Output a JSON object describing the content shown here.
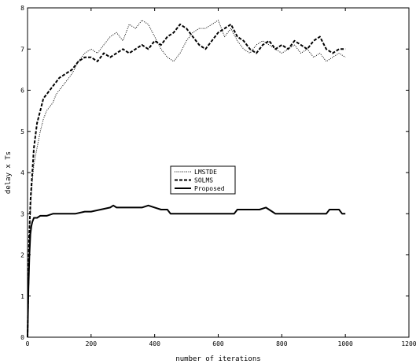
{
  "chart_data": {
    "type": "line",
    "xlabel": "number of iterations",
    "ylabel": "delay x Ts",
    "xlim": [
      0,
      1200
    ],
    "ylim": [
      0,
      8
    ],
    "xticks": [
      0,
      200,
      400,
      600,
      800,
      1000,
      1200
    ],
    "yticks": [
      0,
      1,
      2,
      3,
      4,
      5,
      6,
      7,
      8
    ],
    "grid": false,
    "legend_position": "center",
    "series": [
      {
        "name": "LMSTDE",
        "style": "dotted",
        "x": [
          0,
          5,
          10,
          15,
          20,
          30,
          40,
          50,
          60,
          70,
          80,
          90,
          100,
          120,
          140,
          160,
          180,
          200,
          220,
          240,
          260,
          280,
          300,
          320,
          340,
          360,
          380,
          400,
          420,
          440,
          460,
          480,
          500,
          520,
          540,
          560,
          580,
          600,
          620,
          640,
          660,
          680,
          700,
          720,
          740,
          760,
          780,
          800,
          820,
          840,
          860,
          880,
          900,
          920,
          940,
          960,
          980,
          1000
        ],
        "values": [
          0,
          2.2,
          3.2,
          3.8,
          4.2,
          4.6,
          5.0,
          5.3,
          5.5,
          5.6,
          5.7,
          5.9,
          6.0,
          6.2,
          6.4,
          6.7,
          6.9,
          7.0,
          6.9,
          7.1,
          7.3,
          7.4,
          7.2,
          7.6,
          7.5,
          7.7,
          7.6,
          7.3,
          7.0,
          6.8,
          6.7,
          6.9,
          7.2,
          7.4,
          7.5,
          7.5,
          7.6,
          7.7,
          7.3,
          7.5,
          7.2,
          7.0,
          6.9,
          7.1,
          7.2,
          7.1,
          7.0,
          6.9,
          7.0,
          7.1,
          6.9,
          7.0,
          6.8,
          6.9,
          6.7,
          6.8,
          6.9,
          6.8
        ]
      },
      {
        "name": "SOLMS",
        "style": "dashed",
        "x": [
          0,
          5,
          10,
          15,
          20,
          30,
          40,
          50,
          60,
          70,
          80,
          90,
          100,
          120,
          140,
          160,
          180,
          200,
          220,
          240,
          260,
          280,
          300,
          320,
          340,
          360,
          380,
          400,
          420,
          440,
          460,
          480,
          500,
          520,
          540,
          560,
          580,
          600,
          620,
          640,
          660,
          680,
          700,
          720,
          740,
          760,
          780,
          800,
          820,
          840,
          860,
          880,
          900,
          920,
          940,
          960,
          980,
          1000
        ],
        "values": [
          0,
          2.4,
          3.4,
          4.0,
          4.6,
          5.2,
          5.5,
          5.8,
          5.9,
          6.0,
          6.1,
          6.2,
          6.3,
          6.4,
          6.5,
          6.7,
          6.8,
          6.8,
          6.7,
          6.9,
          6.8,
          6.9,
          7.0,
          6.9,
          7.0,
          7.1,
          7.0,
          7.2,
          7.1,
          7.3,
          7.4,
          7.6,
          7.5,
          7.3,
          7.1,
          7.0,
          7.2,
          7.4,
          7.5,
          7.6,
          7.3,
          7.2,
          7.0,
          6.9,
          7.1,
          7.2,
          7.0,
          7.1,
          7.0,
          7.2,
          7.1,
          7.0,
          7.2,
          7.3,
          7.0,
          6.9,
          7.0,
          7.0
        ]
      },
      {
        "name": "Proposed",
        "style": "solid",
        "x": [
          0,
          3,
          6,
          9,
          12,
          15,
          20,
          30,
          40,
          60,
          80,
          100,
          120,
          150,
          180,
          200,
          230,
          260,
          270,
          280,
          300,
          320,
          340,
          360,
          380,
          400,
          420,
          440,
          450,
          460,
          500,
          550,
          600,
          650,
          660,
          700,
          730,
          750,
          770,
          780,
          800,
          850,
          900,
          940,
          950,
          980,
          990,
          1000
        ],
        "values": [
          0,
          1.2,
          2.0,
          2.5,
          2.7,
          2.8,
          2.9,
          2.9,
          2.95,
          2.95,
          3.0,
          3.0,
          3.0,
          3.0,
          3.05,
          3.05,
          3.1,
          3.15,
          3.2,
          3.15,
          3.15,
          3.15,
          3.15,
          3.15,
          3.2,
          3.15,
          3.1,
          3.1,
          3.0,
          3.0,
          3.0,
          3.0,
          3.0,
          3.0,
          3.1,
          3.1,
          3.1,
          3.15,
          3.05,
          3.0,
          3.0,
          3.0,
          3.0,
          3.0,
          3.1,
          3.1,
          3.0,
          3.0
        ]
      }
    ]
  }
}
